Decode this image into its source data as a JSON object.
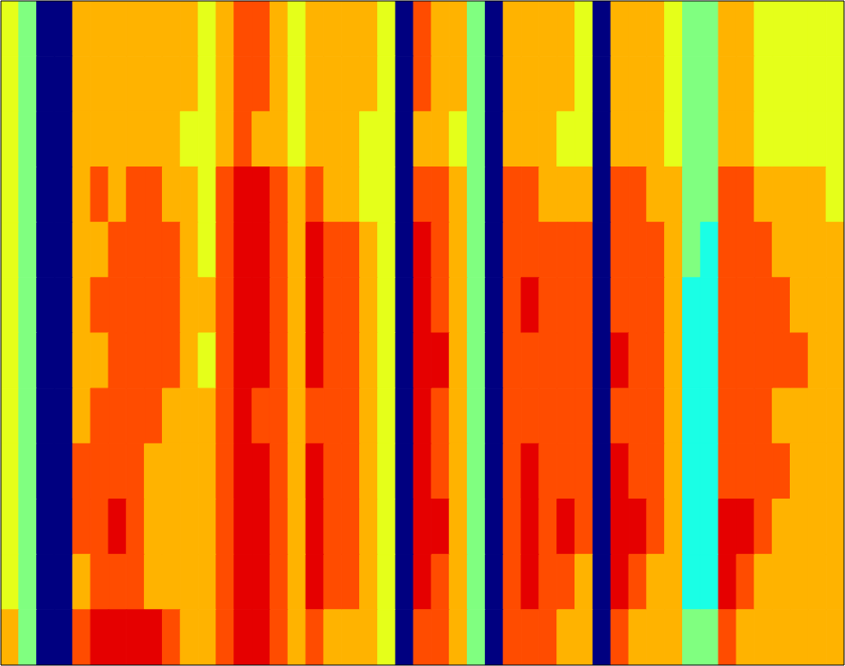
{
  "chart_data": {
    "type": "heatmap",
    "tick_labels": false,
    "color_range": [
      0,
      10
    ],
    "cells": [
      [
        6,
        5,
        0,
        0,
        7,
        7,
        7,
        7,
        7,
        7,
        7,
        6,
        7,
        8,
        8,
        7,
        6,
        7,
        7,
        7,
        7,
        6,
        0,
        8,
        7,
        7,
        5,
        0,
        7,
        7,
        7,
        7,
        6,
        0,
        7,
        7,
        7,
        6,
        5,
        5,
        7,
        7,
        6,
        6,
        6,
        6,
        6
      ],
      [
        6,
        5,
        0,
        0,
        7,
        7,
        7,
        7,
        7,
        7,
        7,
        6,
        7,
        8,
        8,
        7,
        6,
        7,
        7,
        7,
        7,
        6,
        0,
        8,
        7,
        7,
        5,
        0,
        7,
        7,
        7,
        7,
        6,
        0,
        7,
        7,
        7,
        6,
        5,
        5,
        7,
        7,
        6,
        6,
        6,
        6,
        6
      ],
      [
        6,
        5,
        0,
        0,
        7,
        7,
        7,
        7,
        7,
        7,
        6,
        6,
        7,
        8,
        7,
        7,
        6,
        7,
        7,
        7,
        6,
        6,
        0,
        7,
        7,
        6,
        5,
        0,
        7,
        7,
        7,
        6,
        6,
        0,
        7,
        7,
        7,
        6,
        5,
        5,
        7,
        7,
        6,
        6,
        6,
        6,
        6
      ],
      [
        6,
        5,
        0,
        0,
        7,
        8,
        7,
        8,
        8,
        7,
        7,
        6,
        8,
        9,
        9,
        8,
        7,
        8,
        7,
        7,
        6,
        6,
        0,
        8,
        8,
        7,
        5,
        0,
        8,
        8,
        7,
        7,
        7,
        0,
        8,
        8,
        7,
        7,
        5,
        5,
        8,
        8,
        7,
        7,
        7,
        7,
        6
      ],
      [
        6,
        5,
        0,
        0,
        7,
        7,
        8,
        8,
        8,
        8,
        7,
        6,
        8,
        9,
        9,
        8,
        7,
        9,
        8,
        8,
        7,
        6,
        0,
        9,
        8,
        7,
        5,
        0,
        8,
        8,
        8,
        8,
        8,
        0,
        8,
        8,
        8,
        7,
        5,
        4,
        8,
        8,
        8,
        7,
        7,
        7,
        7
      ],
      [
        6,
        5,
        0,
        0,
        7,
        8,
        8,
        8,
        8,
        8,
        7,
        7,
        8,
        9,
        9,
        8,
        7,
        9,
        8,
        8,
        7,
        6,
        0,
        9,
        8,
        7,
        5,
        0,
        8,
        9,
        8,
        8,
        8,
        0,
        8,
        8,
        8,
        7,
        4,
        4,
        8,
        8,
        8,
        8,
        7,
        7,
        7
      ],
      [
        6,
        5,
        0,
        0,
        7,
        7,
        8,
        8,
        8,
        8,
        7,
        6,
        8,
        9,
        9,
        8,
        7,
        9,
        8,
        8,
        7,
        6,
        0,
        9,
        9,
        7,
        5,
        0,
        8,
        8,
        8,
        8,
        8,
        0,
        9,
        8,
        8,
        7,
        4,
        4,
        8,
        8,
        8,
        8,
        8,
        7,
        7
      ],
      [
        6,
        5,
        0,
        0,
        7,
        8,
        8,
        8,
        8,
        7,
        7,
        7,
        8,
        9,
        8,
        8,
        7,
        8,
        8,
        8,
        7,
        6,
        0,
        9,
        8,
        7,
        5,
        0,
        8,
        8,
        8,
        8,
        8,
        0,
        8,
        8,
        8,
        7,
        4,
        4,
        8,
        8,
        8,
        7,
        7,
        7,
        7
      ],
      [
        6,
        5,
        0,
        0,
        8,
        8,
        8,
        8,
        7,
        7,
        7,
        7,
        8,
        9,
        9,
        8,
        7,
        9,
        8,
        8,
        7,
        6,
        0,
        9,
        8,
        7,
        5,
        0,
        8,
        9,
        8,
        8,
        8,
        0,
        9,
        8,
        8,
        7,
        4,
        4,
        8,
        8,
        8,
        8,
        7,
        7,
        7
      ],
      [
        6,
        5,
        0,
        0,
        8,
        8,
        9,
        8,
        7,
        7,
        7,
        7,
        8,
        9,
        9,
        8,
        7,
        9,
        8,
        8,
        7,
        6,
        0,
        9,
        9,
        7,
        5,
        0,
        8,
        9,
        8,
        9,
        8,
        0,
        9,
        9,
        8,
        7,
        4,
        4,
        9,
        9,
        8,
        7,
        7,
        7,
        7
      ],
      [
        6,
        5,
        0,
        0,
        7,
        8,
        8,
        8,
        7,
        7,
        7,
        7,
        8,
        9,
        9,
        8,
        7,
        9,
        8,
        8,
        7,
        6,
        0,
        9,
        8,
        7,
        5,
        0,
        8,
        9,
        8,
        8,
        7,
        0,
        9,
        8,
        7,
        7,
        4,
        4,
        9,
        8,
        7,
        7,
        7,
        7,
        7
      ],
      [
        7,
        5,
        0,
        0,
        8,
        9,
        9,
        9,
        9,
        8,
        7,
        7,
        8,
        9,
        9,
        8,
        7,
        8,
        7,
        7,
        7,
        6,
        0,
        8,
        8,
        7,
        5,
        0,
        8,
        8,
        8,
        7,
        7,
        0,
        8,
        7,
        7,
        7,
        5,
        5,
        8,
        7,
        7,
        7,
        7,
        7,
        7
      ]
    ]
  }
}
